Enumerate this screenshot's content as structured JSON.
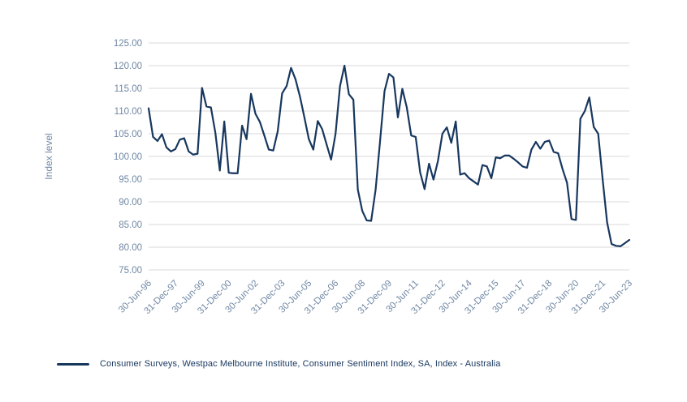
{
  "chart": {
    "legend": {
      "label": "Consumer Surveys, Westpac Melbourne Institute, Consumer Sentiment Index, SA, Index - Australia"
    }
  },
  "chart_data": {
    "type": "line",
    "title": "",
    "xlabel": "",
    "ylabel": "Index level",
    "ylim": [
      75,
      125
    ],
    "y_tick_step": 5,
    "grid": "horizontal",
    "legend_position": "bottom-left",
    "frequency": "quarterly",
    "colors": {
      "line": "#17375E",
      "grid": "#D9D9D9",
      "tick_label": "#7088A4",
      "axis_title": "#7088A4",
      "legend_text": "#17375E"
    },
    "y_tick_labels": [
      "125.00",
      "120.00",
      "115.00",
      "110.00",
      "105.00",
      "100.00",
      "95.00",
      "90.00",
      "85.00",
      "80.00",
      "75.00"
    ],
    "x_tick_labels": [
      "30-Jun-96",
      "31-Dec-97",
      "30-Jun-99",
      "31-Dec-00",
      "30-Jun-02",
      "31-Dec-03",
      "30-Jun-05",
      "31-Dec-06",
      "30-Jun-08",
      "31-Dec-09",
      "30-Jun-11",
      "31-Dec-12",
      "30-Jun-14",
      "31-Dec-15",
      "30-Jun-17",
      "31-Dec-18",
      "30-Jun-20",
      "31-Dec-21",
      "30-Jun-23"
    ],
    "series": [
      {
        "name": "Consumer Surveys, Westpac Melbourne Institute, Consumer Sentiment Index, SA, Index - Australia",
        "x": [
          "Jun-96",
          "Sep-96",
          "Dec-96",
          "Mar-97",
          "Jun-97",
          "Sep-97",
          "Dec-97",
          "Mar-98",
          "Jun-98",
          "Sep-98",
          "Dec-98",
          "Mar-99",
          "Jun-99",
          "Sep-99",
          "Dec-99",
          "Mar-00",
          "Jun-00",
          "Sep-00",
          "Dec-00",
          "Mar-01",
          "Jun-01",
          "Sep-01",
          "Dec-01",
          "Mar-02",
          "Jun-02",
          "Sep-02",
          "Dec-02",
          "Mar-03",
          "Jun-03",
          "Sep-03",
          "Dec-03",
          "Mar-04",
          "Jun-04",
          "Sep-04",
          "Dec-04",
          "Mar-05",
          "Jun-05",
          "Sep-05",
          "Dec-05",
          "Mar-06",
          "Jun-06",
          "Sep-06",
          "Dec-06",
          "Mar-07",
          "Jun-07",
          "Sep-07",
          "Dec-07",
          "Mar-08",
          "Jun-08",
          "Sep-08",
          "Dec-08",
          "Mar-09",
          "Jun-09",
          "Sep-09",
          "Dec-09",
          "Mar-10",
          "Jun-10",
          "Sep-10",
          "Dec-10",
          "Mar-11",
          "Jun-11",
          "Sep-11",
          "Dec-11",
          "Mar-12",
          "Jun-12",
          "Sep-12",
          "Dec-12",
          "Mar-13",
          "Jun-13",
          "Sep-13",
          "Dec-13",
          "Mar-14",
          "Jun-14",
          "Sep-14",
          "Dec-14",
          "Mar-15",
          "Jun-15",
          "Sep-15",
          "Dec-15",
          "Mar-16",
          "Jun-16",
          "Sep-16",
          "Dec-16",
          "Mar-17",
          "Jun-17",
          "Sep-17",
          "Dec-17",
          "Mar-18",
          "Jun-18",
          "Sep-18",
          "Dec-18",
          "Mar-19",
          "Jun-19",
          "Sep-19",
          "Dec-19",
          "Mar-20",
          "Jun-20",
          "Sep-20",
          "Dec-20",
          "Mar-21",
          "Jun-21",
          "Sep-21",
          "Dec-21",
          "Mar-22",
          "Jun-22",
          "Sep-22",
          "Dec-22",
          "Mar-23",
          "Jun-23"
        ],
        "values": [
          110.6,
          104.3,
          103.4,
          104.9,
          102.0,
          101.1,
          101.6,
          103.7,
          104.0,
          101.1,
          100.4,
          100.6,
          115.1,
          111.0,
          110.8,
          105.2,
          96.9,
          107.7,
          96.4,
          96.3,
          96.3,
          106.8,
          103.8,
          113.8,
          109.4,
          107.6,
          104.6,
          101.5,
          101.3,
          105.5,
          113.9,
          115.5,
          119.5,
          117.0,
          113.2,
          108.6,
          103.8,
          101.5,
          107.8,
          106.0,
          102.6,
          99.3,
          105.0,
          115.5,
          120.0,
          113.7,
          112.5,
          92.7,
          88.0,
          85.9,
          85.8,
          92.7,
          103.4,
          114.4,
          118.2,
          117.4,
          108.6,
          114.9,
          110.8,
          104.6,
          104.3,
          96.5,
          92.8,
          98.4,
          94.9,
          99.0,
          105.0,
          106.4,
          103.0,
          107.7,
          96.0,
          96.3,
          95.2,
          94.5,
          93.8,
          98.1,
          97.8,
          95.2,
          99.8,
          99.6,
          100.2,
          100.2,
          99.5,
          98.7,
          97.8,
          97.5,
          101.5,
          103.2,
          101.7,
          103.2,
          103.5,
          101.0,
          100.7,
          97.2,
          94.2,
          86.2,
          86.0,
          108.3,
          110.0,
          113.0,
          106.5,
          105.0,
          95.0,
          85.5,
          80.7,
          80.3,
          80.2,
          80.9,
          81.6
        ]
      }
    ]
  }
}
